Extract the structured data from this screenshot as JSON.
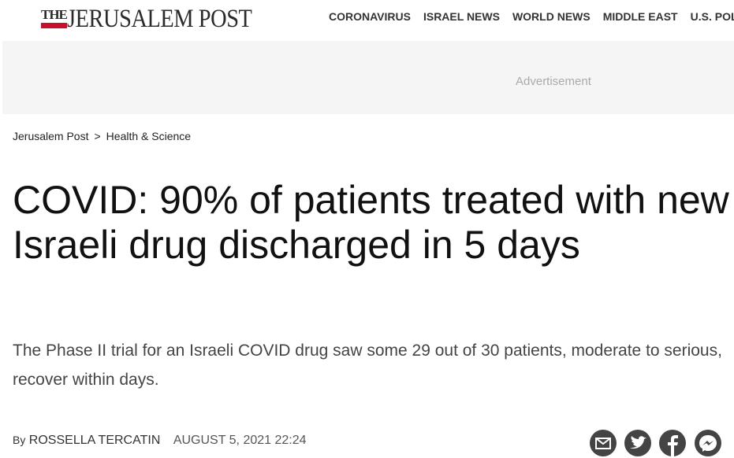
{
  "header": {
    "logo": {
      "prefix": "THE",
      "name": "JERUSALEM POST"
    },
    "nav": [
      "CORONAVIRUS",
      "ISRAEL NEWS",
      "WORLD NEWS",
      "MIDDLE EAST",
      "U.S. POL"
    ]
  },
  "ad": {
    "label": "Advertisement"
  },
  "breadcrumb": {
    "items": [
      "Jerusalem Post",
      "Health & Science"
    ],
    "separator": ">"
  },
  "article": {
    "title": "COVID: 90% of patients treated with new Israeli drug discharged in 5 days",
    "summary": "The Phase II trial for an Israeli COVID drug saw some 29 out of 30 patients, moderate to serious, recover within days.",
    "byline": {
      "prefix": "By",
      "author": "ROSSELLA TERCATIN",
      "date": "AUGUST 5, 2021 22:24"
    }
  }
}
